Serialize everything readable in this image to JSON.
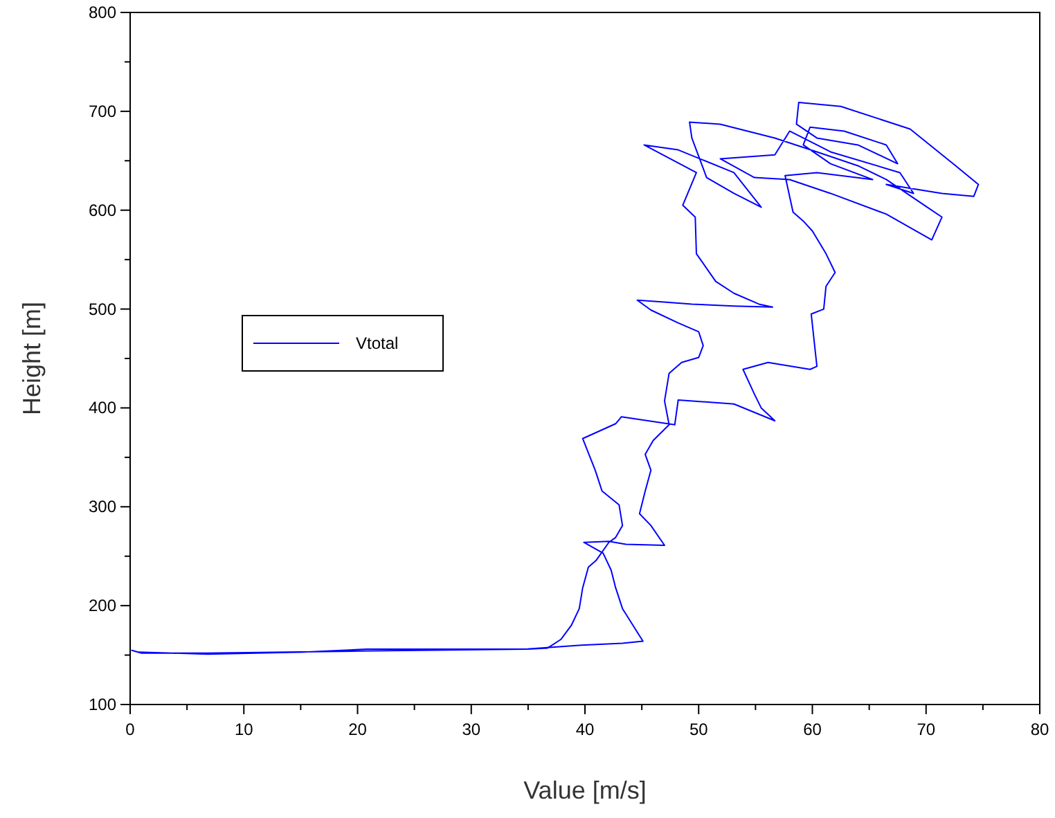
{
  "chart_data": {
    "type": "line",
    "xlabel": "Value [m/s]",
    "ylabel": "Height [m]",
    "xlim": [
      0,
      80
    ],
    "ylim": [
      100,
      800
    ],
    "xticks": [
      0,
      {
        "value": 5,
        "label": null
      },
      10,
      {
        "value": 15,
        "label": null
      },
      20,
      {
        "value": 25,
        "label": null
      },
      30,
      {
        "value": 35,
        "label": null
      },
      40,
      {
        "value": 45,
        "label": null
      },
      50,
      {
        "value": 55,
        "label": null
      },
      60,
      {
        "value": 65,
        "label": null
      },
      70,
      {
        "value": 75,
        "label": null
      },
      80
    ],
    "yticks": [
      100,
      {
        "value": 150,
        "label": null
      },
      200,
      {
        "value": 250,
        "label": null
      },
      300,
      {
        "value": 350,
        "label": null
      },
      400,
      {
        "value": 450,
        "label": null
      },
      500,
      {
        "value": 550,
        "label": null
      },
      600,
      {
        "value": 650,
        "label": null
      },
      700,
      {
        "value": 750,
        "label": null
      },
      800
    ],
    "grid": false,
    "legend": "left",
    "marker": "none",
    "line_style": "solid",
    "series": [
      {
        "name": "Vtotal",
        "color": "#0000ff",
        "x": [
          0.1,
          1,
          6.8,
          20,
          34.8,
          39.7,
          43.3,
          45.1,
          43.3,
          42.7,
          42.3,
          41.6,
          39.9,
          42.1,
          43.6,
          47.0,
          45.8,
          44.8,
          45.3,
          45.8,
          45.3,
          46.0,
          47.4,
          47.0,
          47.4,
          48.5,
          50.0,
          50.4,
          50.0,
          48.2,
          45.8,
          44.6,
          47.0,
          49.4,
          53.1,
          56.5,
          55.3,
          53.1,
          51.5,
          49.8,
          49.7,
          48.6,
          49.8,
          45.2,
          48.2,
          53.1,
          55.5,
          53.1,
          50.7,
          49.4,
          49.2,
          51.9,
          56.7,
          60.4,
          64.0,
          66.5,
          70.1,
          71.4,
          70.5,
          66.5,
          61.6,
          58.0,
          54.9,
          51.9,
          56.7,
          58.0,
          61.6,
          67.7,
          68.9,
          66.5,
          71.4,
          74.2,
          74.6,
          72.6,
          68.6,
          62.5,
          58.8,
          58.6,
          60.4,
          64.0,
          67.5,
          66.5,
          62.8,
          59.8,
          59.2,
          61.6,
          65.3,
          60.4,
          57.6,
          58.3,
          59.2,
          60.0,
          61.2,
          62.0,
          61.2,
          61.0,
          59.9,
          60.2,
          60.4,
          59.8,
          56.1,
          53.9,
          54.9,
          55.5,
          56.7,
          53.1,
          48.2,
          47.9,
          43.2,
          42.7,
          39.8,
          40.9,
          41.5,
          43.0,
          43.3,
          42.7,
          42.1,
          41.0,
          40.3,
          39.8,
          39.5,
          38.8,
          37.9,
          36.7,
          34.8,
          20.8,
          15.3,
          6.8,
          0.7
        ],
        "values": [
          155,
          152,
          152,
          154,
          156,
          160,
          162,
          164,
          197,
          218,
          236,
          253,
          264,
          265,
          262,
          261,
          281,
          293,
          316,
          337,
          353,
          367,
          383,
          407,
          435,
          446,
          451,
          463,
          477,
          486,
          499,
          509,
          507,
          505,
          503,
          502,
          505,
          516,
          528,
          556,
          593,
          605,
          638,
          666,
          661,
          638,
          603,
          617,
          633,
          673,
          689,
          687,
          673,
          659,
          645,
          631,
          603,
          593,
          570,
          596,
          617,
          631,
          633,
          652,
          656,
          680,
          659,
          638,
          617,
          626,
          617,
          614,
          626,
          645,
          682,
          705,
          709,
          687,
          673,
          666,
          647,
          666,
          680,
          684,
          666,
          647,
          631,
          638,
          635,
          598,
          589,
          579,
          556,
          537,
          523,
          500,
          495,
          463,
          442,
          439,
          446,
          439,
          414,
          400,
          387,
          404,
          408,
          383,
          391,
          384,
          369,
          337,
          316,
          302,
          281,
          269,
          264,
          246,
          239,
          218,
          197,
          180,
          166,
          157,
          156,
          156,
          153,
          151,
          153
        ]
      }
    ]
  }
}
